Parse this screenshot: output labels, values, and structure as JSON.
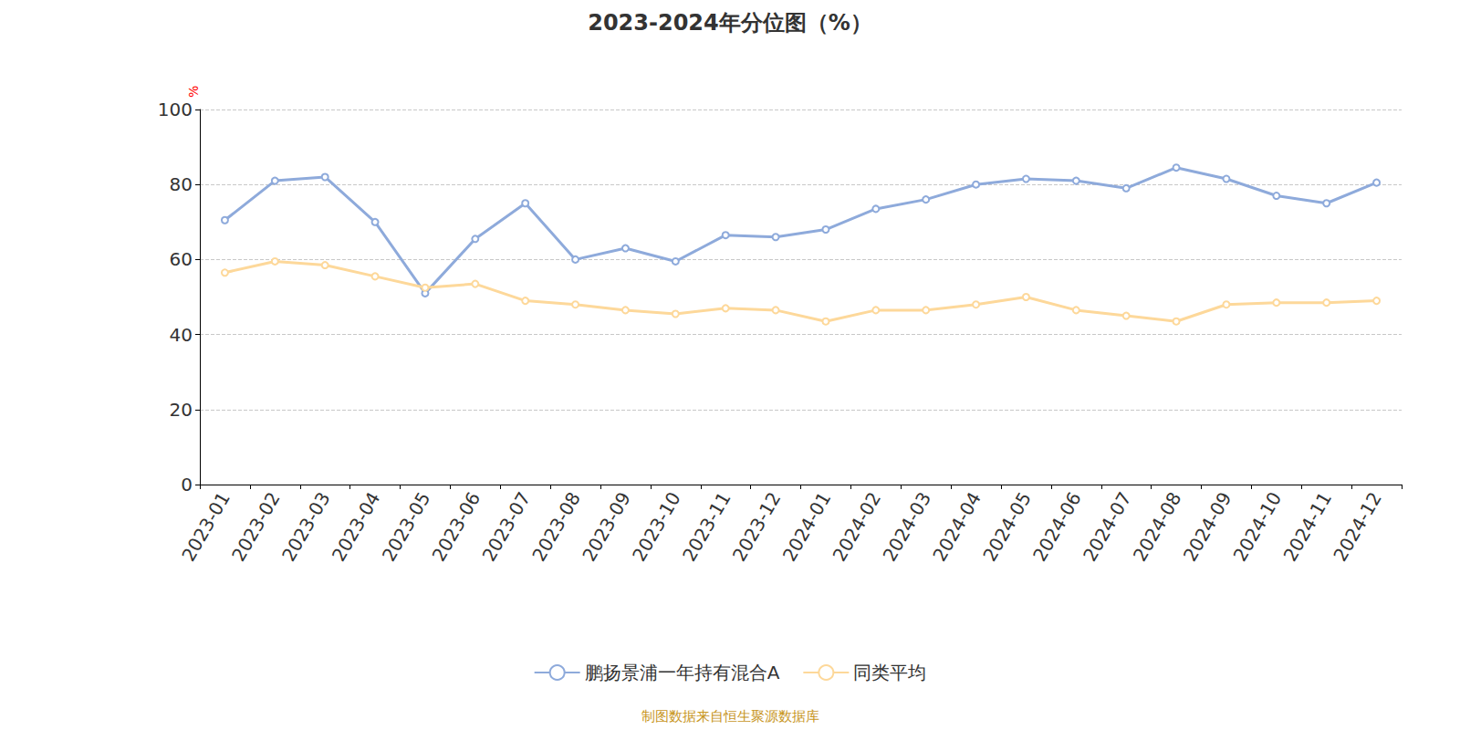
{
  "chart_data": {
    "type": "line",
    "title": "2023-2024年分位图（%）",
    "ylabel": "%",
    "source": "制图数据来自恒生聚源数据库",
    "categories": [
      "2023-01",
      "2023-02",
      "2023-03",
      "2023-04",
      "2023-05",
      "2023-06",
      "2023-07",
      "2023-08",
      "2023-09",
      "2023-10",
      "2023-11",
      "2023-12",
      "2024-01",
      "2024-02",
      "2024-03",
      "2024-04",
      "2024-05",
      "2024-06",
      "2024-07",
      "2024-08",
      "2024-09",
      "2024-10",
      "2024-11",
      "2024-12"
    ],
    "series": [
      {
        "name": "鹏扬景浦一年持有混合A",
        "color": "#8eaadb",
        "marker": "hollow_circle",
        "values": [
          70.5,
          81,
          82,
          70,
          51,
          65.5,
          75,
          60,
          63,
          59.5,
          66.5,
          66,
          68,
          73.5,
          76,
          80,
          81.5,
          81,
          79,
          84.5,
          81.5,
          77,
          75,
          80.5
        ]
      },
      {
        "name": "同类平均",
        "color": "#fdd89a",
        "marker": "hollow_circle",
        "values": [
          56.5,
          59.5,
          58.5,
          55.5,
          52.5,
          53.5,
          49,
          48,
          46.5,
          45.5,
          47,
          46.5,
          43.5,
          46.5,
          46.5,
          48,
          50,
          46.5,
          45,
          43.5,
          48,
          48.5,
          48.5,
          49
        ]
      }
    ],
    "ylim": [
      0,
      100
    ],
    "yticks": [
      0,
      20,
      40,
      60,
      80,
      100
    ],
    "grid": true,
    "legend": "bottom"
  }
}
